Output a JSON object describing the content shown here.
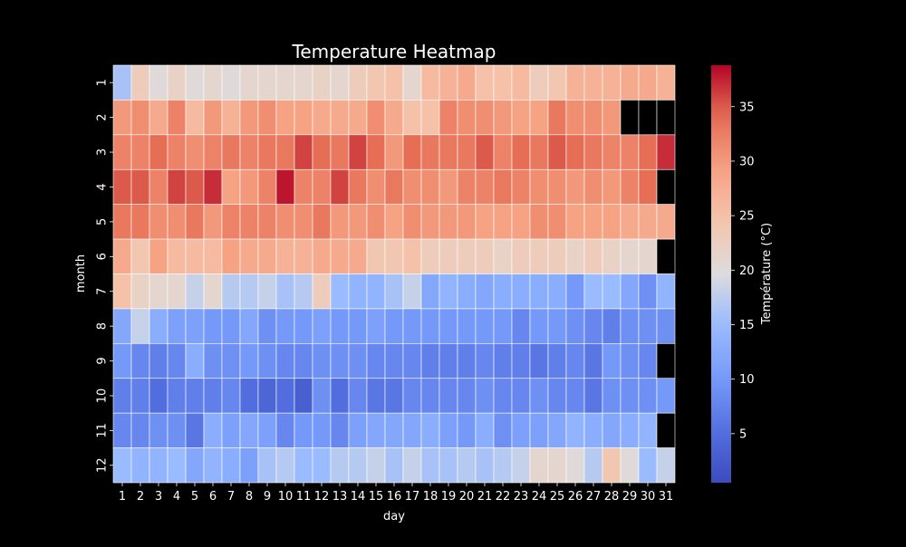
{
  "chart_data": {
    "type": "heatmap",
    "title": "Temperature Heatmap",
    "xlabel": "day",
    "ylabel": "month",
    "x_categories": [
      "1",
      "2",
      "3",
      "4",
      "5",
      "6",
      "7",
      "8",
      "9",
      "10",
      "11",
      "12",
      "13",
      "14",
      "15",
      "16",
      "17",
      "18",
      "19",
      "20",
      "21",
      "22",
      "23",
      "24",
      "25",
      "26",
      "27",
      "28",
      "29",
      "30",
      "31"
    ],
    "y_categories": [
      "1",
      "2",
      "3",
      "4",
      "5",
      "6",
      "7",
      "8",
      "9",
      "10",
      "11",
      "12"
    ],
    "colorbar": {
      "label": "Température (°C)",
      "min": 0.5,
      "max": 38.8,
      "ticks": [
        5,
        10,
        15,
        20,
        25,
        30,
        35
      ],
      "colormap": "coolwarm"
    },
    "missing_color": "#000000",
    "background": "#000000",
    "text_color": "#ffffff",
    "values": [
      [
        16,
        23,
        20,
        22,
        20,
        21,
        20,
        21,
        21,
        21,
        21,
        22,
        21,
        23,
        24,
        25,
        21,
        26,
        27,
        28,
        25,
        25,
        26,
        23,
        24,
        27,
        27,
        27,
        28,
        28,
        27
      ],
      [
        30,
        31,
        28,
        32,
        26,
        30,
        27,
        30,
        31,
        29,
        29,
        28,
        28,
        28,
        31,
        28,
        25,
        25,
        32,
        31,
        31,
        30,
        29,
        29,
        33,
        31,
        31,
        30,
        null,
        null,
        null
      ],
      [
        32,
        32,
        34,
        32,
        31,
        32,
        33,
        32,
        33,
        33,
        36,
        34,
        33,
        36,
        34,
        30,
        34,
        33,
        33,
        33,
        35,
        32,
        34,
        33,
        35,
        34,
        33,
        32,
        32,
        34,
        37
      ],
      [
        35,
        35,
        32,
        36,
        35,
        37,
        29,
        30,
        32,
        38,
        32,
        32,
        36,
        33,
        31,
        33,
        31,
        31,
        30,
        32,
        32,
        33,
        32,
        31,
        31,
        30,
        31,
        30,
        32,
        34,
        null
      ],
      [
        33,
        33,
        31,
        31,
        33,
        30,
        32,
        32,
        32,
        31,
        31,
        33,
        30,
        30,
        31,
        29,
        31,
        30,
        30,
        30,
        29,
        29,
        29,
        31,
        31,
        29,
        29,
        29,
        28,
        28,
        28
      ],
      [
        28,
        24,
        29,
        26,
        26,
        26,
        29,
        28,
        28,
        27,
        27,
        28,
        28,
        28,
        24,
        24,
        25,
        23,
        23,
        23,
        23,
        22,
        23,
        23,
        23,
        22,
        23,
        22,
        21,
        21,
        null
      ],
      [
        25,
        22,
        21,
        21,
        18,
        21,
        17,
        17,
        18,
        16,
        17,
        23,
        15,
        14,
        14,
        16,
        18,
        12,
        14,
        13,
        12,
        13,
        13,
        13,
        13,
        10,
        15,
        15,
        12,
        9,
        14
      ],
      [
        12,
        18,
        13,
        11,
        11,
        10,
        10,
        12,
        9,
        10,
        10,
        11,
        10,
        10,
        11,
        10,
        10,
        10,
        10,
        10,
        10,
        10,
        8,
        10,
        10,
        9,
        8,
        7,
        9,
        9,
        9
      ],
      [
        10,
        8,
        7,
        8,
        13,
        9,
        9,
        10,
        9,
        8,
        8,
        9,
        9,
        9,
        8,
        8,
        8,
        7,
        7,
        7,
        8,
        7,
        7,
        6,
        7,
        8,
        6,
        10,
        9,
        8,
        null
      ],
      [
        7,
        7,
        5,
        7,
        7,
        7,
        8,
        5,
        4,
        5,
        3,
        9,
        5,
        8,
        6,
        6,
        8,
        8,
        8,
        8,
        9,
        8,
        8,
        9,
        8,
        8,
        6,
        9,
        9,
        9,
        10
      ],
      [
        8,
        8,
        9,
        9,
        6,
        13,
        11,
        12,
        11,
        8,
        10,
        10,
        8,
        11,
        12,
        12,
        12,
        13,
        11,
        10,
        13,
        9,
        11,
        11,
        12,
        14,
        13,
        12,
        13,
        14,
        null
      ],
      [
        15,
        14,
        14,
        15,
        12,
        14,
        13,
        11,
        16,
        17,
        15,
        15,
        17,
        17,
        18,
        16,
        18,
        16,
        16,
        17,
        16,
        17,
        18,
        21,
        21,
        20,
        17,
        24,
        20,
        15,
        18
      ]
    ]
  }
}
